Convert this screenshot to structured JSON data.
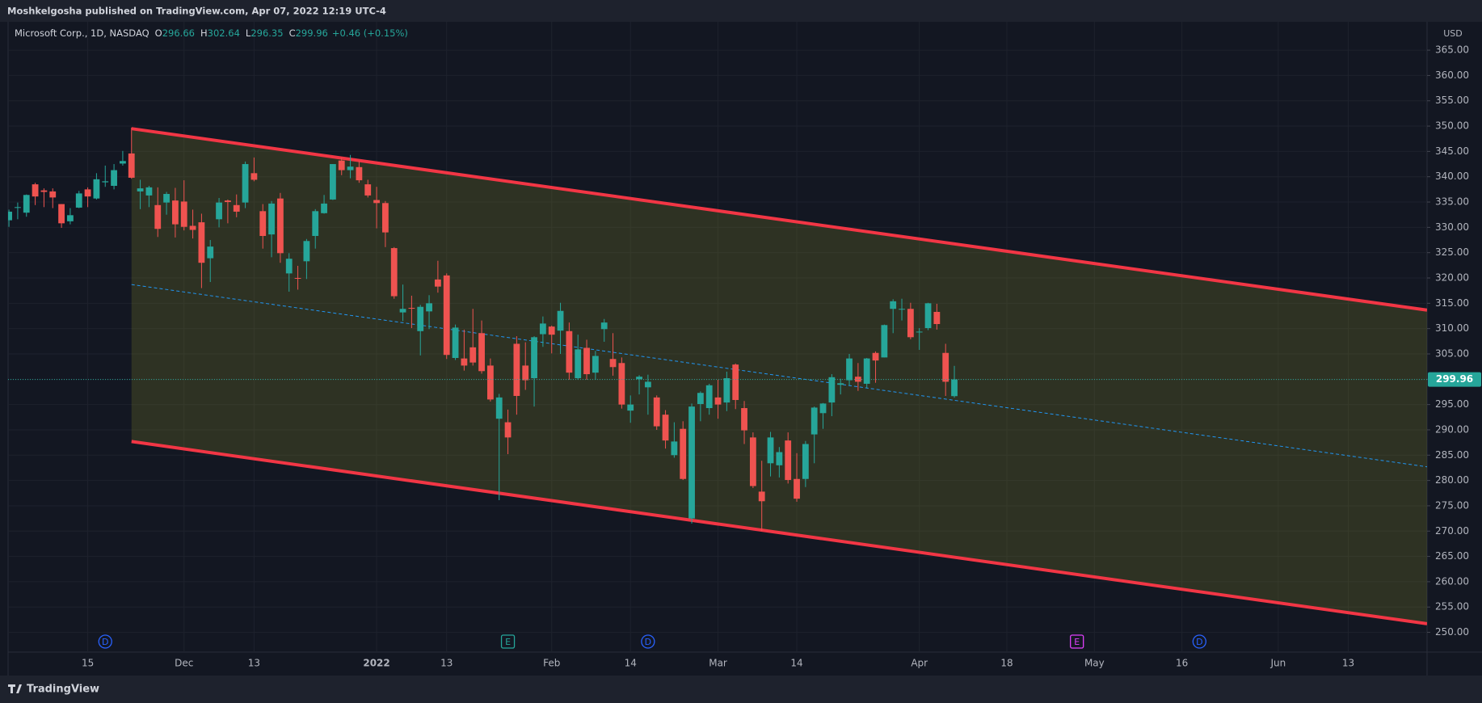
{
  "header": {
    "published": "Moshkelgosha published on TradingView.com, Apr 07, 2022 12:19 UTC-4",
    "brand": "TradingView"
  },
  "chart_data": {
    "type": "candlestick",
    "symbol": "Microsoft Corp., 1D, NASDAQ",
    "ohlc_labels": [
      "O",
      "H",
      "L",
      "C"
    ],
    "change": "+0.46 (+0.15%)",
    "currency": "USD",
    "open": [
      331.4,
      333.9,
      332.9,
      338.5,
      337.3,
      337.1,
      334.6,
      331.2,
      333.9,
      337.5,
      335.7,
      338.9,
      338.2,
      342.6,
      344.6,
      337.1,
      336.3,
      334.4,
      334.9,
      335.3,
      335.1,
      330.3,
      331.0,
      323.9,
      331.6,
      335.3,
      334.4,
      334.9,
      340.7,
      333.2,
      328.6,
      335.7,
      320.9,
      320.0,
      323.3,
      328.3,
      332.8,
      335.5,
      343.2,
      341.3,
      341.9,
      338.5,
      335.4,
      334.8,
      325.9,
      313.2,
      314.1,
      309.5,
      313.4,
      319.7,
      320.5,
      304.2,
      304.1,
      306.3,
      309.1,
      302.7,
      292.2,
      291.5,
      307.0,
      302.7,
      300.2,
      308.9,
      310.4,
      309.6,
      309.5,
      300.2,
      306.2,
      301.3,
      309.9,
      304.0,
      303.2,
      293.8,
      300.0,
      298.4,
      296.4,
      293.0,
      285.0,
      290.2,
      272.5,
      295.1,
      294.3,
      296.4,
      295.4,
      302.9,
      294.3,
      288.5,
      277.8,
      283.4,
      283.0,
      287.9,
      280.3,
      280.3,
      289.1,
      293.3,
      295.4,
      298.9,
      299.8,
      300.5,
      299.1,
      305.2,
      304.3,
      313.9,
      313.8,
      313.9,
      309.3,
      310.1,
      313.3,
      305.2,
      296.66
    ],
    "high": [
      333.5,
      334.9,
      336.5,
      338.8,
      337.7,
      337.7,
      334.6,
      333.8,
      337.2,
      337.9,
      340.7,
      342.2,
      342.5,
      345.1,
      349.7,
      339.4,
      338.2,
      337.9,
      337.0,
      337.8,
      339.3,
      333.5,
      332.7,
      327.5,
      335.8,
      335.5,
      336.5,
      343.0,
      343.8,
      334.6,
      335.2,
      336.8,
      324.9,
      322.4,
      327.7,
      333.6,
      336.4,
      342.5,
      343.8,
      344.3,
      343.1,
      339.4,
      338.0,
      335.2,
      326.1,
      318.7,
      316.5,
      314.7,
      316.6,
      323.4,
      320.9,
      310.8,
      309.8,
      313.9,
      311.6,
      304.1,
      297.1,
      294.0,
      308.5,
      307.3,
      308.5,
      312.4,
      310.6,
      315.1,
      311.2,
      308.8,
      307.8,
      305.6,
      311.9,
      309.1,
      304.3,
      296.8,
      300.8,
      300.9,
      296.8,
      293.9,
      291.5,
      291.7,
      295.2,
      297.6,
      299.1,
      299.9,
      301.5,
      303.1,
      295.7,
      289.5,
      283.9,
      289.6,
      286.6,
      289.5,
      285.4,
      287.8,
      294.6,
      295.3,
      301.0,
      300.1,
      305.0,
      303.2,
      304.2,
      305.5,
      310.8,
      315.8,
      315.9,
      315.1,
      310.1,
      315.1,
      314.9,
      307.0,
      302.64
    ],
    "low": [
      330.1,
      331.6,
      332.1,
      334.4,
      334.0,
      333.8,
      329.9,
      330.6,
      333.8,
      334.0,
      335.5,
      338.0,
      337.5,
      342.2,
      339.6,
      333.6,
      334.0,
      328.1,
      332.5,
      328.0,
      329.4,
      327.8,
      318.0,
      319.2,
      330.0,
      330.8,
      332.0,
      333.8,
      339.1,
      325.8,
      324.1,
      323.0,
      317.3,
      317.7,
      319.8,
      325.8,
      332.7,
      335.4,
      340.3,
      339.7,
      338.8,
      335.9,
      329.8,
      326.1,
      315.9,
      311.5,
      310.1,
      304.7,
      309.9,
      317.1,
      304.0,
      303.8,
      301.7,
      302.7,
      301.1,
      295.6,
      276.1,
      285.2,
      293.0,
      297.9,
      294.6,
      306.4,
      305.1,
      305.0,
      299.9,
      299.9,
      299.9,
      299.9,
      307.4,
      300.7,
      294.2,
      291.4,
      297.0,
      293.0,
      290.0,
      286.3,
      284.5,
      280.1,
      271.5,
      291.7,
      293.0,
      292.2,
      293.7,
      294.1,
      287.2,
      278.5,
      270.0,
      280.8,
      280.6,
      279.4,
      275.8,
      278.7,
      283.4,
      290.2,
      292.7,
      297.0,
      298.8,
      297.7,
      298.3,
      299.3,
      304.3,
      309.1,
      311.6,
      307.9,
      305.8,
      309.7,
      309.8,
      296.7,
      296.35
    ],
    "close": [
      333.1,
      334.0,
      336.4,
      336.1,
      337.0,
      335.9,
      330.8,
      332.4,
      336.7,
      336.1,
      339.5,
      339.1,
      341.3,
      343.1,
      339.8,
      337.7,
      337.9,
      329.7,
      336.6,
      330.6,
      330.1,
      329.5,
      323.0,
      326.2,
      334.9,
      335.0,
      333.1,
      342.5,
      339.4,
      328.3,
      334.7,
      324.9,
      323.8,
      319.9,
      327.3,
      333.2,
      334.7,
      342.5,
      341.3,
      342.0,
      339.3,
      336.3,
      334.8,
      329.0,
      316.4,
      313.9,
      314.0,
      314.3,
      315.0,
      318.3,
      304.8,
      310.2,
      302.7,
      303.3,
      301.6,
      296.0,
      296.4,
      288.5,
      296.7,
      299.8,
      308.3,
      311.0,
      308.8,
      313.5,
      301.3,
      305.9,
      301.0,
      304.6,
      311.2,
      302.4,
      295.0,
      295.0,
      300.5,
      299.5,
      290.7,
      287.9,
      287.7,
      280.3,
      294.6,
      297.3,
      298.8,
      295.0,
      300.2,
      295.9,
      289.9,
      278.9,
      275.9,
      288.5,
      285.6,
      280.1,
      276.4,
      287.2,
      294.4,
      295.2,
      300.4,
      299.2,
      304.1,
      299.5,
      304.1,
      303.7,
      310.7,
      315.4,
      313.9,
      308.3,
      309.4,
      315.0,
      310.9,
      299.5,
      299.96
    ],
    "up_color": "#26a69a",
    "down_color": "#ef5350",
    "xlim": [
      -0.1,
      162
    ],
    "xticks": [
      {
        "value": 9,
        "label": "15"
      },
      {
        "value": 20,
        "label": "Dec"
      },
      {
        "value": 28,
        "label": "13"
      },
      {
        "value": 42,
        "label": "2022"
      },
      {
        "value": 50,
        "label": "13"
      },
      {
        "value": 62,
        "label": "Feb"
      },
      {
        "value": 71,
        "label": "14"
      },
      {
        "value": 81,
        "label": "Mar"
      },
      {
        "value": 90,
        "label": "14"
      },
      {
        "value": 104,
        "label": "Apr"
      },
      {
        "value": 114,
        "label": "18"
      },
      {
        "value": 124,
        "label": "May"
      },
      {
        "value": 134,
        "label": "16"
      },
      {
        "value": 145,
        "label": "Jun"
      },
      {
        "value": 153,
        "label": "13"
      }
    ],
    "ylim": [
      246.1,
      370.6
    ],
    "yticks": [
      {
        "value": 250,
        "label": "250.00"
      },
      {
        "value": 255,
        "label": "255.00"
      },
      {
        "value": 260,
        "label": "260.00"
      },
      {
        "value": 265,
        "label": "265.00"
      },
      {
        "value": 270,
        "label": "270.00"
      },
      {
        "value": 275,
        "label": "275.00"
      },
      {
        "value": 280,
        "label": "280.00"
      },
      {
        "value": 285,
        "label": "285.00"
      },
      {
        "value": 290,
        "label": "290.00"
      },
      {
        "value": 295,
        "label": "295.00"
      },
      {
        "value": 300,
        "label": "300.00"
      },
      {
        "value": 305,
        "label": "305.00"
      },
      {
        "value": 310,
        "label": "310.00"
      },
      {
        "value": 315,
        "label": "315.00"
      },
      {
        "value": 320,
        "label": "320.00"
      },
      {
        "value": 325,
        "label": "325.00"
      },
      {
        "value": 330,
        "label": "330.00"
      },
      {
        "value": 335,
        "label": "335.00"
      },
      {
        "value": 340,
        "label": "340.00"
      },
      {
        "value": 345,
        "label": "345.00"
      },
      {
        "value": 350,
        "label": "350.00"
      },
      {
        "value": 355,
        "label": "355.00"
      },
      {
        "value": 360,
        "label": "360.00"
      },
      {
        "value": 365,
        "label": "365.00"
      }
    ],
    "grid": true,
    "channel": {
      "color": "#f23645",
      "fill": "rgba(120,123,40,0.28)",
      "upper": {
        "x": [
          14,
          162
        ],
        "values": [
          349.5,
          313.65
        ]
      },
      "lower": {
        "x": [
          14,
          162
        ],
        "values": [
          287.7,
          251.7
        ]
      },
      "middle": {
        "x": [
          14,
          162
        ],
        "values": [
          318.7,
          282.7
        ],
        "color": "#2196f3"
      }
    },
    "events": [
      {
        "x": 11,
        "label": "D",
        "color": "#2962ff",
        "shape": "circle"
      },
      {
        "x": 57,
        "label": "E",
        "color": "#26a69a",
        "shape": "square"
      },
      {
        "x": 73,
        "label": "D",
        "color": "#2962ff",
        "shape": "circle"
      },
      {
        "x": 122,
        "label": "E",
        "color": "#e040fb",
        "shape": "square"
      },
      {
        "x": 136,
        "label": "D",
        "color": "#2962ff",
        "shape": "circle"
      }
    ]
  }
}
